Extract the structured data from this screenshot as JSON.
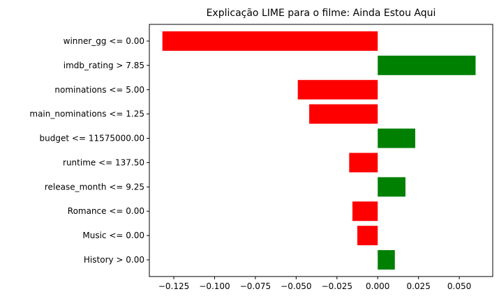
{
  "chart_data": {
    "type": "bar",
    "orientation": "horizontal",
    "title": "Explicação LIME para o filme: Ainda Estou Aqui",
    "xlabel": "",
    "ylabel": "",
    "xlim": [
      -0.14,
      0.0705
    ],
    "grid": false,
    "legend": "none",
    "x_ticks": [
      -0.125,
      -0.1,
      -0.075,
      -0.05,
      -0.025,
      0.0,
      0.025,
      0.05
    ],
    "x_tick_labels": [
      "−0.125",
      "−0.100",
      "−0.075",
      "−0.050",
      "−0.025",
      "0.000",
      "0.025",
      "0.050"
    ],
    "categories": [
      "winner_gg <= 0.00",
      "imdb_rating > 7.85",
      "nominations <= 5.00",
      "main_nominations <= 1.25",
      "budget <= 11575000.00",
      "runtime <= 137.50",
      "release_month <= 9.25",
      "Romance <= 0.00",
      "Music <= 0.00",
      "History > 0.00"
    ],
    "values": [
      -0.132,
      0.06,
      -0.049,
      -0.042,
      0.023,
      -0.0175,
      0.017,
      -0.0155,
      -0.0125,
      0.0105
    ],
    "colors": {
      "negative": "#ff0000",
      "positive": "#008000"
    }
  }
}
